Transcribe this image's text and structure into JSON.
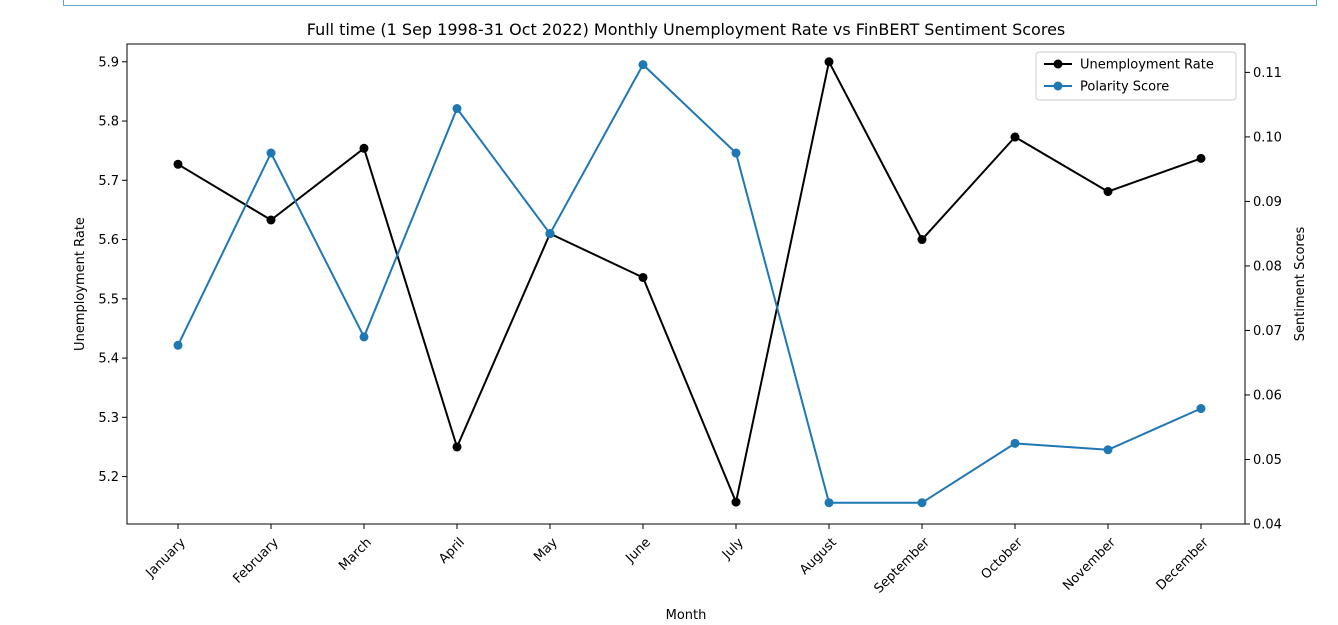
{
  "chart_data": {
    "type": "line",
    "title": "Full time (1 Sep 1998-31 Oct 2022) Monthly Unemployment Rate vs FinBERT Sentiment Scores",
    "xlabel": "Month",
    "ylabel_left": "Unemployment Rate",
    "ylabel_right": "Sentiment Scores",
    "categories": [
      "January",
      "February",
      "March",
      "April",
      "May",
      "June",
      "July",
      "August",
      "September",
      "October",
      "November",
      "December"
    ],
    "left_axis": {
      "ylim": [
        5.12,
        5.93
      ],
      "ticks": [
        5.2,
        5.3,
        5.4,
        5.5,
        5.6,
        5.7,
        5.8,
        5.9
      ],
      "tick_labels": [
        "5.2",
        "5.3",
        "5.4",
        "5.5",
        "5.6",
        "5.7",
        "5.8",
        "5.9"
      ]
    },
    "right_axis": {
      "ylim": [
        0.04,
        0.1144
      ],
      "ticks": [
        0.04,
        0.05,
        0.06,
        0.07,
        0.08,
        0.09,
        0.1,
        0.11
      ],
      "tick_labels": [
        "0.04",
        "0.05",
        "0.06",
        "0.07",
        "0.08",
        "0.09",
        "0.10",
        "0.11"
      ]
    },
    "series": [
      {
        "name": "Unemployment Rate",
        "axis": "left",
        "color": "#000000",
        "values": [
          5.727,
          5.633,
          5.754,
          5.25,
          5.61,
          5.536,
          5.157,
          5.9,
          5.6,
          5.773,
          5.681,
          5.737
        ]
      },
      {
        "name": "Polarity Score",
        "axis": "right",
        "color": "#1f77b4",
        "values": [
          0.0677,
          0.0975,
          0.069,
          0.1044,
          0.085,
          0.1112,
          0.0975,
          0.0433,
          0.0433,
          0.0525,
          0.0515,
          0.0579
        ]
      }
    ],
    "grid": false,
    "legend_position": "top-right"
  }
}
